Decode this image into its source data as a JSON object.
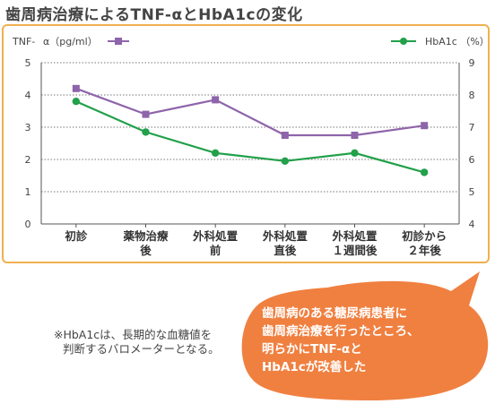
{
  "title": "歯周病治療によるTNF-αとHbA1cの変化",
  "chart_data": {
    "type": "line",
    "categories": [
      [
        "初診"
      ],
      [
        "薬物治療",
        "後"
      ],
      [
        "外科処置",
        "前"
      ],
      [
        "外科処置",
        "直後"
      ],
      [
        "外科処置",
        "１週間後"
      ],
      [
        "初診から",
        "２年後"
      ]
    ],
    "left_axis": {
      "label_prefix": "TNF-",
      "label_main": "α（pg/ml）",
      "ticks": [
        "0",
        "1",
        "2",
        "3",
        "4",
        "5"
      ],
      "ylim": [
        0,
        5
      ]
    },
    "right_axis": {
      "label": "HbA1c （%）",
      "ticks": [
        "4",
        "5",
        "6",
        "7",
        "8",
        "9"
      ],
      "ylim": [
        4,
        9
      ]
    },
    "grid": "horizontal dotted",
    "series": [
      {
        "name": "",
        "axis": "left",
        "color": "#8e64aa",
        "marker": "square",
        "values": [
          4.2,
          3.4,
          3.85,
          2.75,
          2.75,
          3.05
        ]
      },
      {
        "name": "HbA1c",
        "axis": "right",
        "color": "#22a04a",
        "marker": "circle",
        "values": [
          7.8,
          6.85,
          6.2,
          5.95,
          6.2,
          5.6
        ]
      }
    ]
  },
  "note": {
    "line1": "※HbA1cは、長期的な血糖値を",
    "line2": "判断するバロメーターとなる。"
  },
  "bubble": {
    "color": "#f08040",
    "lines": [
      "歯周病のある糖尿病患者に",
      "歯周病治療を行ったところ、",
      "明らかにTNF-αと",
      "HbA1cが改善した"
    ]
  }
}
